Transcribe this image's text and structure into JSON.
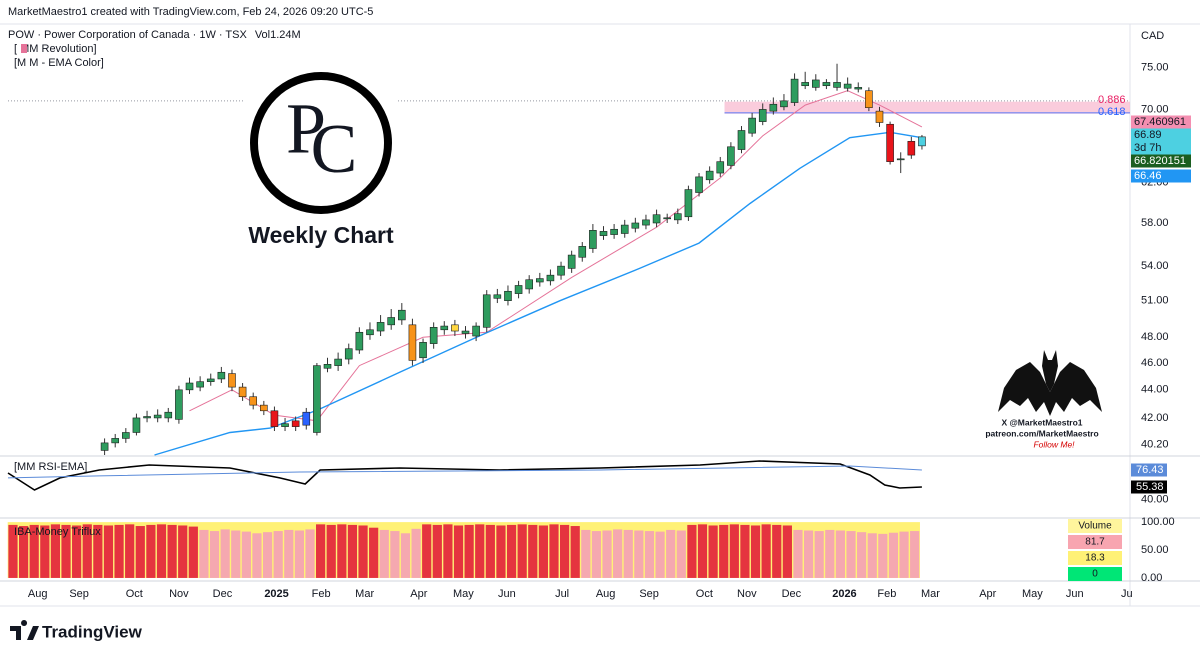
{
  "header": {
    "credit": "MarketMaestro1 created with TradingView.com, Feb 24, 2026 09:20 UTC-5"
  },
  "logo": {
    "letters": [
      "P",
      "C"
    ],
    "caption": "Weekly Chart"
  },
  "watermark": {
    "lines": [
      "X @MarketMaestro1",
      "patreon.com/MarketMaestro",
      "Follow Me!"
    ]
  },
  "footer": {
    "brand": "TradingView"
  },
  "chart_data": [
    {
      "type": "candlestick",
      "title": "POW · Power Corporation of Canada · 1W · TSX",
      "volume": "Vol1.24M",
      "indicators": [
        "[ MM Revolution]",
        "[M M - EMA Color]"
      ],
      "currency": "CAD",
      "log_scale": true,
      "ylim": [
        39.5,
        80.5
      ],
      "yticks": [
        {
          "value": 75,
          "label": "75.00"
        },
        {
          "value": 70,
          "label": "70.00"
        },
        {
          "value": 62,
          "label": "62.00"
        },
        {
          "value": 58,
          "label": "58.00"
        },
        {
          "value": 54,
          "label": "54.00"
        },
        {
          "value": 51,
          "label": "51.00"
        },
        {
          "value": 48,
          "label": "48.00"
        },
        {
          "value": 46,
          "label": "46.00"
        },
        {
          "value": 44,
          "label": "44.00"
        },
        {
          "value": 42,
          "label": "42.00"
        },
        {
          "value": 40.2,
          "label": "40.20"
        }
      ],
      "xlim": [
        -9.1,
        96.6
      ],
      "xticks": [
        {
          "value": -6.3,
          "label": "Aug"
        },
        {
          "value": -2.4,
          "label": "Sep"
        },
        {
          "value": 2.8,
          "label": "Oct"
        },
        {
          "value": 7.0,
          "label": "Nov"
        },
        {
          "value": 11.1,
          "label": "Dec"
        },
        {
          "value": 16.2,
          "label": "2025"
        },
        {
          "value": 20.4,
          "label": "Feb"
        },
        {
          "value": 24.5,
          "label": "Mar"
        },
        {
          "value": 29.6,
          "label": "Apr"
        },
        {
          "value": 33.8,
          "label": "May"
        },
        {
          "value": 37.9,
          "label": "Jun"
        },
        {
          "value": 43.1,
          "label": "Jul"
        },
        {
          "value": 47.2,
          "label": "Aug"
        },
        {
          "value": 51.3,
          "label": "Sep"
        },
        {
          "value": 56.5,
          "label": "Oct"
        },
        {
          "value": 60.5,
          "label": "Nov"
        },
        {
          "value": 64.7,
          "label": "Dec"
        },
        {
          "value": 69.7,
          "label": "2026"
        },
        {
          "value": 73.7,
          "label": "Feb"
        },
        {
          "value": 77.8,
          "label": "Mar"
        },
        {
          "value": 83.2,
          "label": "Apr"
        },
        {
          "value": 87.4,
          "label": "May"
        },
        {
          "value": 91.4,
          "label": "Jun"
        },
        {
          "value": 96.3,
          "label": "Ju"
        }
      ],
      "open": [
        39.8,
        40.3,
        40.6,
        41.0,
        42.0,
        42.2,
        42.0,
        41.9,
        44.0,
        44.2,
        44.6,
        44.8,
        45.2,
        44.2,
        43.5,
        42.9,
        42.5,
        41.4,
        41.8,
        41.5,
        41.0,
        45.6,
        45.8,
        46.3,
        47.0,
        48.2,
        48.5,
        49.0,
        49.4,
        49.0,
        46.4,
        47.5,
        48.6,
        49.0,
        48.5,
        48.1,
        48.8,
        51.2,
        51.0,
        51.6,
        52.0,
        52.6,
        52.7,
        53.2,
        53.8,
        54.8,
        55.6,
        56.8,
        56.9,
        57.0,
        57.5,
        57.8,
        58.0,
        58.5,
        58.3,
        58.6,
        61.0,
        62.3,
        63.0,
        63.8,
        65.5,
        67.3,
        68.6,
        69.8,
        70.3,
        70.8,
        73.2,
        72.6,
        73.2,
        72.6,
        73.0,
        72.4,
        72.2,
        69.8,
        68.3,
        64.4,
        66.4,
        65.9
      ],
      "high": [
        40.6,
        40.9,
        41.3,
        42.3,
        42.5,
        42.6,
        42.7,
        44.3,
        44.9,
        45.0,
        45.2,
        45.7,
        45.5,
        44.5,
        43.8,
        43.2,
        42.8,
        42.0,
        42.1,
        42.7,
        46.0,
        46.4,
        46.8,
        47.5,
        48.8,
        49.2,
        49.8,
        50.3,
        50.8,
        49.5,
        47.9,
        49.2,
        49.3,
        49.4,
        48.9,
        49.2,
        51.9,
        52.0,
        52.3,
        52.7,
        53.2,
        53.4,
        53.7,
        54.4,
        55.4,
        56.2,
        57.9,
        57.7,
        57.9,
        58.3,
        58.5,
        58.8,
        59.3,
        58.9,
        59.4,
        61.7,
        63.0,
        63.7,
        64.7,
        66.3,
        68.1,
        69.6,
        70.7,
        71.4,
        71.8,
        74.3,
        74.5,
        74.2,
        73.6,
        75.5,
        73.8,
        73.2,
        72.6,
        70.3,
        68.6,
        65.2,
        66.9,
        67.1
      ],
      "low": [
        39.5,
        40.0,
        40.3,
        40.8,
        41.7,
        41.7,
        41.7,
        41.6,
        43.7,
        43.9,
        44.3,
        44.5,
        43.9,
        43.2,
        42.6,
        42.2,
        41.1,
        41.1,
        41.1,
        41.2,
        40.8,
        45.3,
        45.4,
        45.9,
        46.7,
        47.8,
        48.1,
        48.6,
        49.0,
        45.8,
        46.0,
        47.1,
        48.2,
        48.1,
        47.9,
        47.7,
        48.4,
        50.8,
        50.6,
        51.2,
        51.6,
        52.2,
        52.3,
        52.8,
        53.4,
        54.4,
        55.2,
        56.4,
        56.5,
        56.6,
        57.1,
        57.4,
        57.6,
        58.0,
        57.9,
        58.2,
        60.6,
        61.9,
        62.6,
        63.4,
        65.1,
        66.9,
        68.2,
        69.4,
        69.9,
        70.4,
        72.4,
        72.2,
        72.4,
        72.2,
        72.1,
        72.0,
        69.8,
        68.0,
        63.9,
        63.0,
        64.5,
        65.5
      ],
      "close": [
        40.3,
        40.6,
        41.0,
        42.0,
        42.1,
        42.0,
        42.4,
        44.0,
        44.5,
        44.6,
        44.8,
        45.3,
        44.2,
        43.5,
        42.9,
        42.5,
        41.4,
        41.6,
        41.4,
        42.4,
        45.8,
        45.9,
        46.3,
        47.1,
        48.4,
        48.6,
        49.2,
        49.6,
        50.2,
        46.2,
        47.6,
        48.8,
        48.9,
        48.5,
        48.3,
        48.9,
        51.5,
        51.5,
        51.8,
        52.3,
        52.8,
        52.9,
        53.2,
        54.0,
        55.0,
        55.8,
        57.3,
        57.2,
        57.4,
        57.8,
        58.0,
        58.3,
        58.8,
        58.4,
        58.9,
        61.3,
        62.6,
        63.2,
        64.2,
        65.8,
        67.6,
        69.0,
        70.0,
        70.6,
        71.0,
        73.6,
        72.8,
        73.5,
        72.8,
        73.2,
        72.5,
        72.6,
        70.2,
        68.5,
        64.2,
        64.5,
        64.9,
        66.89
      ],
      "color": "#2e9c5e",
      "color_overrides": {
        "12": "#f7931a",
        "13": "#f7931a",
        "14": "#f7931a",
        "15": "#f7931a",
        "16": "#e8141a",
        "18": "#e8141a",
        "19": "#2962ff",
        "29": "#f7931a",
        "33": "#ffd740",
        "72": "#f7931a",
        "73": "#f7931a",
        "74": "#e8141a",
        "76": "#e8141a",
        "77": "#4dd0e1"
      },
      "lines": [
        {
          "color": "#e57399",
          "x": [
            8,
            12,
            16,
            20,
            24,
            30,
            36,
            44,
            52,
            58,
            62,
            66,
            70,
            73,
            77
          ],
          "values": [
            42.5,
            44.0,
            42.2,
            41.8,
            45.8,
            48.0,
            48.4,
            53.0,
            57.6,
            62.5,
            67.0,
            70.5,
            72.2,
            70.5,
            68.0
          ]
        },
        {
          "color": "#2196f3",
          "x": [
            4.7,
            11.8,
            15.6,
            20.2,
            27.8,
            35.3,
            42.9,
            50.4,
            56,
            60.8,
            65.5,
            70.2,
            74,
            77
          ],
          "values": [
            39.5,
            41.0,
            41.3,
            42.6,
            45.3,
            48.1,
            51.0,
            53.8,
            56.1,
            59.9,
            63.5,
            66.8,
            67.4,
            66.8
          ]
        }
      ],
      "levels": [
        {
          "label": "0.886",
          "value": 71.0,
          "color": "#e91e63"
        },
        {
          "label": "0.618",
          "value": 69.6,
          "color": "#2962ff"
        }
      ],
      "zone": {
        "from": 58.4,
        "low": 69.5,
        "high": 70.9,
        "color": "#f8bbd0"
      },
      "price_labels": [
        {
          "label": "67.460961",
          "color": "#f48fb1"
        },
        {
          "label": "66.89",
          "color": "#4dd0e1"
        },
        {
          "label": "3d 7h",
          "color": "#4dd0e1"
        },
        {
          "label": "66.820151",
          "color": "#1b5e20"
        },
        {
          "label": "66.46",
          "color": "#2196f3"
        }
      ]
    },
    {
      "type": "line",
      "title": "[MM RSI-EMA]",
      "ylim": [
        20.7,
        91.3
      ],
      "yticks": [
        {
          "value": 40,
          "label": "40.00"
        }
      ],
      "xlim": [
        -9.1,
        96.6
      ],
      "series": [
        {
          "color": "#000000",
          "x": [
            -9.1,
            -6.6,
            -4.2,
            -0.5,
            4.2,
            11.8,
            16.5,
            18.9,
            20.3,
            27.8,
            37.2,
            46.7,
            56.1,
            61.7,
            69.3,
            72.1,
            73.5,
            74.9,
            77.0
          ],
          "values": [
            72.7,
            51.7,
            66.6,
            76.4,
            82.6,
            78.9,
            66.6,
            59.1,
            76.4,
            78.9,
            76.4,
            78.9,
            82.6,
            87.6,
            83.9,
            70.3,
            57.9,
            54.2,
            55.38
          ],
          "last_label": "55.38"
        },
        {
          "color": "#5b8bd9",
          "x": [
            -9.1,
            -0.5,
            18.4,
            46.7,
            70.2,
            77.0
          ],
          "values": [
            66.6,
            69.1,
            74.0,
            76.4,
            81.4,
            76.43
          ],
          "last_label": "76.43"
        }
      ]
    },
    {
      "type": "bar",
      "title": "IBA-Money Triflux",
      "ylim": [
        -1.9,
        103.8
      ],
      "yticks": [
        {
          "value": 100,
          "label": "100.00"
        },
        {
          "value": 50,
          "label": "50.00"
        },
        {
          "value": 0,
          "label": "0.00"
        }
      ],
      "xlim": [
        -0.47,
        105.3
      ],
      "values": [
        95,
        93,
        95,
        94,
        96,
        95,
        94,
        96,
        95,
        94,
        95,
        96,
        93,
        95,
        96,
        95,
        94,
        92,
        86,
        84,
        87,
        85,
        83,
        80,
        82,
        84,
        86,
        85,
        87,
        96,
        95,
        96,
        95,
        94,
        90,
        86,
        84,
        80,
        88,
        96,
        95,
        96,
        94,
        95,
        96,
        95,
        94,
        95,
        96,
        95,
        94,
        96,
        95,
        93,
        86,
        84,
        85,
        87,
        86,
        85,
        84,
        83,
        86,
        85,
        95,
        96,
        94,
        95,
        96,
        95,
        94,
        96,
        95,
        94,
        86,
        85,
        84,
        86,
        85,
        84,
        82,
        80,
        79,
        81,
        83,
        84
      ],
      "colors": [
        "#e5343f",
        "#e5343f",
        "#e5343f",
        "#e5343f",
        "#e5343f",
        "#e5343f",
        "#e5343f",
        "#e5343f",
        "#e5343f",
        "#e5343f",
        "#e5343f",
        "#e5343f",
        "#e5343f",
        "#e5343f",
        "#e5343f",
        "#e5343f",
        "#e5343f",
        "#e5343f",
        "#f5a8b0",
        "#f5a8b0",
        "#f5a8b0",
        "#f5a8b0",
        "#f5a8b0",
        "#f5a8b0",
        "#f5a8b0",
        "#f5a8b0",
        "#f5a8b0",
        "#f5a8b0",
        "#f5a8b0",
        "#e5343f",
        "#e5343f",
        "#e5343f",
        "#e5343f",
        "#e5343f",
        "#e5343f",
        "#f5a8b0",
        "#f5a8b0",
        "#f5a8b0",
        "#f5a8b0",
        "#e5343f",
        "#e5343f",
        "#e5343f",
        "#e5343f",
        "#e5343f",
        "#e5343f",
        "#e5343f",
        "#e5343f",
        "#e5343f",
        "#e5343f",
        "#e5343f",
        "#e5343f",
        "#e5343f",
        "#e5343f",
        "#e5343f",
        "#f5a8b0",
        "#f5a8b0",
        "#f5a8b0",
        "#f5a8b0",
        "#f5a8b0",
        "#f5a8b0",
        "#f5a8b0",
        "#f5a8b0",
        "#f5a8b0",
        "#f5a8b0",
        "#e5343f",
        "#e5343f",
        "#e5343f",
        "#e5343f",
        "#e5343f",
        "#e5343f",
        "#e5343f",
        "#e5343f",
        "#e5343f",
        "#e5343f",
        "#f5a8b0",
        "#f5a8b0",
        "#f5a8b0",
        "#f5a8b0",
        "#f5a8b0",
        "#f5a8b0",
        "#f5a8b0",
        "#f5a8b0",
        "#f5a8b0",
        "#f5a8b0",
        "#f5a8b0",
        "#f5a8b0"
      ],
      "band_color": "#fff176",
      "legend": {
        "title": "Volume",
        "title_color": "#fff59d",
        "items": [
          {
            "value": 81.7,
            "color": "#f8a5b0"
          },
          {
            "value": 18.3,
            "color": "#fff176"
          },
          {
            "value": 0,
            "color": "#00e676"
          }
        ]
      }
    }
  ]
}
